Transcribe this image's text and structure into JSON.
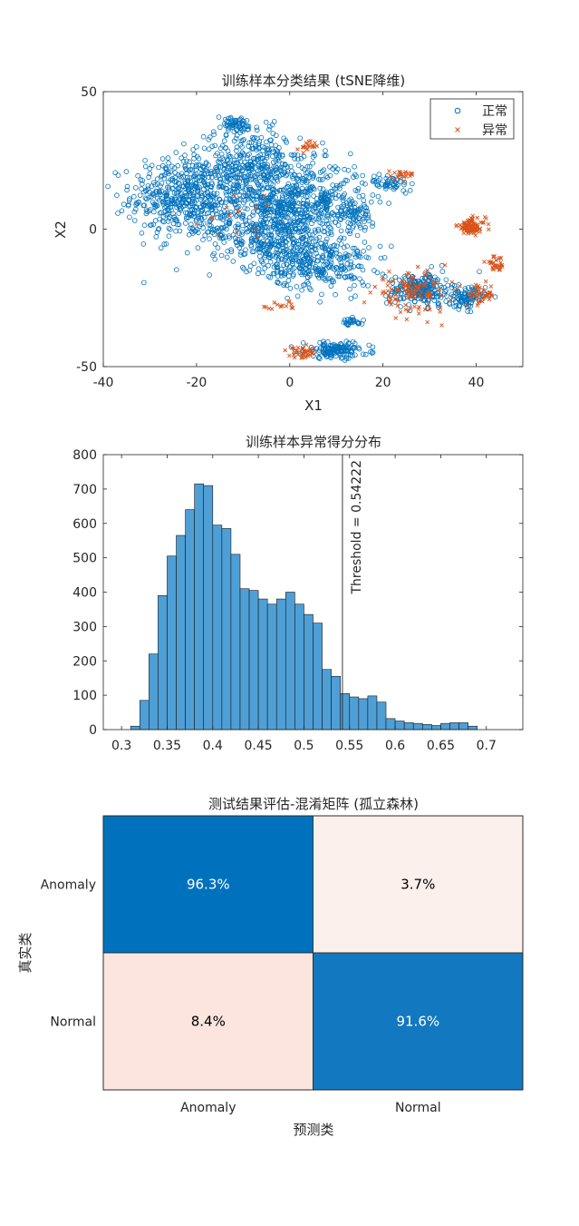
{
  "charts": [
    {
      "type": "scatter",
      "title": "训练样本分类结果 (tSNE降维)",
      "xlabel": "X1",
      "ylabel": "X2",
      "xlim": [
        -40,
        50
      ],
      "ylim": [
        -50,
        50
      ],
      "xticks": [
        -40,
        -20,
        0,
        20,
        40
      ],
      "yticks": [
        -50,
        0,
        50
      ],
      "legend": {
        "placement": "top-right",
        "entries": [
          "正常",
          "异常"
        ]
      },
      "series": [
        {
          "name": "正常",
          "marker": "circle",
          "color": "#0072BD",
          "clusters": [
            {
              "cx": -22,
              "cy": 12,
              "rx": 12,
              "ry": 15,
              "n": 520
            },
            {
              "cx": -8,
              "cy": 22,
              "rx": 10,
              "ry": 14,
              "n": 360
            },
            {
              "cx": -5,
              "cy": 0,
              "rx": 12,
              "ry": 14,
              "n": 420
            },
            {
              "cx": 4,
              "cy": 10,
              "rx": 12,
              "ry": 14,
              "n": 420
            },
            {
              "cx": 6,
              "cy": -12,
              "rx": 11,
              "ry": 10,
              "n": 320
            },
            {
              "cx": -12,
              "cy": 38,
              "rx": 5,
              "ry": 3,
              "n": 60
            },
            {
              "cx": 14,
              "cy": 5,
              "rx": 4,
              "ry": 5,
              "n": 60
            },
            {
              "cx": 22,
              "cy": 17,
              "rx": 5,
              "ry": 3,
              "n": 50
            },
            {
              "cx": 28,
              "cy": -22,
              "rx": 7,
              "ry": 6,
              "n": 220
            },
            {
              "cx": 38,
              "cy": -25,
              "rx": 4,
              "ry": 4,
              "n": 90
            },
            {
              "cx": 10,
              "cy": -44,
              "rx": 7,
              "ry": 3,
              "n": 150
            },
            {
              "cx": 13,
              "cy": -34,
              "rx": 3,
              "ry": 1.5,
              "n": 25
            }
          ]
        },
        {
          "name": "异常",
          "marker": "x",
          "color": "#D95319",
          "clusters": [
            {
              "cx": 39,
              "cy": 1,
              "rx": 3,
              "ry": 3,
              "n": 90
            },
            {
              "cx": 26,
              "cy": -23,
              "rx": 8,
              "ry": 7,
              "n": 110
            },
            {
              "cx": 41,
              "cy": -24,
              "rx": 3,
              "ry": 4,
              "n": 40
            },
            {
              "cx": 44,
              "cy": -13,
              "rx": 2,
              "ry": 3,
              "n": 30
            },
            {
              "cx": 3,
              "cy": -45,
              "rx": 3,
              "ry": 2,
              "n": 40
            },
            {
              "cx": 4,
              "cy": 30,
              "rx": 2,
              "ry": 2,
              "n": 20
            },
            {
              "cx": 24,
              "cy": 20,
              "rx": 3,
              "ry": 2,
              "n": 20
            },
            {
              "cx": -2,
              "cy": -28,
              "rx": 4,
              "ry": 2,
              "n": 15
            },
            {
              "cx": -10,
              "cy": 3,
              "rx": 10,
              "ry": 10,
              "n": 15
            }
          ]
        }
      ]
    },
    {
      "type": "bar",
      "title": "训练样本异常得分分布",
      "xlim": [
        0.28,
        0.74
      ],
      "ylim": [
        0,
        800
      ],
      "xticks": [
        0.3,
        0.35,
        0.4,
        0.45,
        0.5,
        0.55,
        0.6,
        0.65,
        0.7
      ],
      "yticks": [
        0,
        100,
        200,
        300,
        400,
        500,
        600,
        700,
        800
      ],
      "bin_start": 0.31,
      "bin_width": 0.01,
      "values": [
        10,
        85,
        220,
        390,
        505,
        565,
        640,
        715,
        710,
        595,
        585,
        510,
        410,
        405,
        380,
        365,
        380,
        400,
        365,
        335,
        310,
        175,
        155,
        105,
        95,
        90,
        98,
        80,
        32,
        25,
        20,
        18,
        15,
        12,
        18,
        20,
        20,
        10
      ],
      "bar_color": "#4E9FD6",
      "threshold": {
        "value": 0.54222,
        "label": "Threshold = 0.54222"
      }
    },
    {
      "type": "heatmap",
      "title": "测试结果评估-混淆矩阵 (孤立森林)",
      "xlabel": "预测类",
      "ylabel": "真实类",
      "row_labels": [
        "Anomaly",
        "Normal"
      ],
      "col_labels": [
        "Anomaly",
        "Normal"
      ],
      "values": [
        [
          96.3,
          3.7
        ],
        [
          8.4,
          91.6
        ]
      ],
      "cell_text": [
        [
          "96.3%",
          "3.7%"
        ],
        [
          "8.4%",
          "91.6%"
        ]
      ],
      "cell_colors": [
        [
          "#0072BD",
          "#FCF0EC"
        ],
        [
          "#FBE5DE",
          "#1278C0"
        ]
      ],
      "text_colors": [
        [
          "#ffffff",
          "#000000"
        ],
        [
          "#000000",
          "#ffffff"
        ]
      ]
    }
  ]
}
